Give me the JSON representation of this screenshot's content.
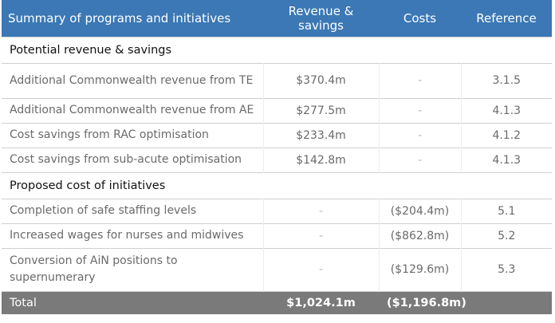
{
  "header": {
    "col1": "Summary of programs and initiatives",
    "col2": "Revenue & savings",
    "col3": "Costs",
    "col4": "Reference"
  },
  "sections": [
    {
      "title": "Potential revenue & savings",
      "rows": [
        {
          "label": "Additional Commonwealth revenue from TE",
          "revenue": "$370.4m",
          "costs": "-",
          "reference": "3.1.5"
        },
        {
          "label": "Additional Commonwealth revenue from AE",
          "revenue": "$277.5m",
          "costs": "-",
          "reference": "4.1.3"
        },
        {
          "label": "Cost savings from RAC optimisation",
          "revenue": "$233.4m",
          "costs": "-",
          "reference": "4.1.2"
        },
        {
          "label": "Cost savings from sub-acute optimisation",
          "revenue": "$142.8m",
          "costs": "-",
          "reference": "4.1.3"
        }
      ]
    },
    {
      "title": "Proposed cost of initiatives",
      "rows": [
        {
          "label": "Completion of safe staffing levels",
          "revenue": "-",
          "costs": "($204.4m)",
          "reference": "5.1"
        },
        {
          "label": "Increased wages for nurses and midwives",
          "revenue": "-",
          "costs": "($862.8m)",
          "reference": "5.2"
        },
        {
          "label": "Conversion of AiN positions to supernumerary",
          "revenue": "-",
          "costs": "($129.6m)",
          "reference": "5.3"
        }
      ]
    }
  ],
  "total": {
    "label": "Total",
    "revenue": "$1,024.1m",
    "costs": "($1,196.8m)",
    "reference": ""
  }
}
